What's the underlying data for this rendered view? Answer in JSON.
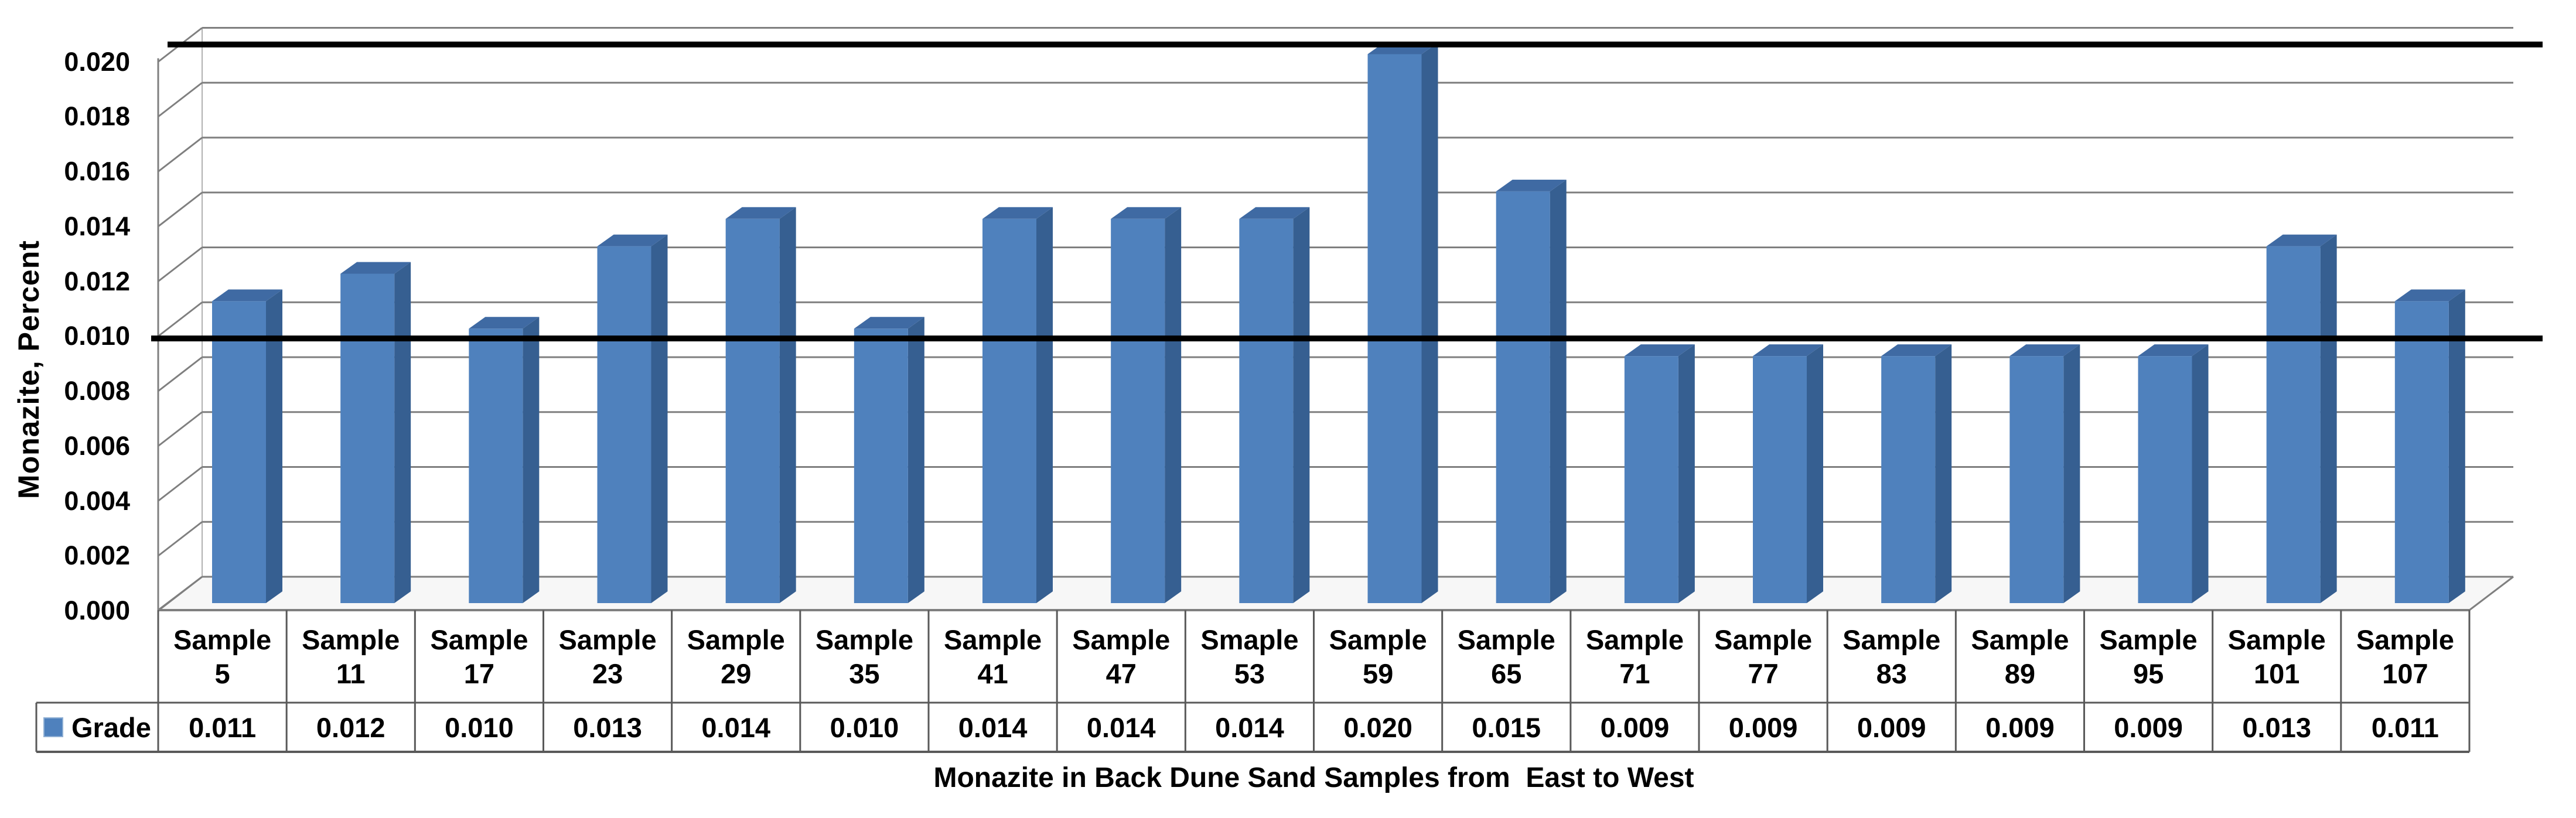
{
  "chart_data": {
    "type": "bar",
    "subtype": "3d-column",
    "title": "",
    "xlabel": "Monazite in Back Dune Sand Samples from  East to West",
    "ylabel": "Monazite, Percent",
    "categories": [
      "Sample 5",
      "Sample 11",
      "Sample 17",
      "Sample 23",
      "Sample 29",
      "Sample 35",
      "Sample 41",
      "Sample 47",
      "Smaple 53",
      "Sample 59",
      "Sample 65",
      "Sample 71",
      "Sample 77",
      "Sample 83",
      "Sample 89",
      "Sample 95",
      "Sample 101",
      "Sample 107"
    ],
    "series": [
      {
        "name": "Grade",
        "values": [
          0.011,
          0.012,
          0.01,
          0.013,
          0.014,
          0.01,
          0.014,
          0.014,
          0.014,
          0.02,
          0.015,
          0.009,
          0.009,
          0.009,
          0.009,
          0.009,
          0.013,
          0.011
        ]
      }
    ],
    "ylim": [
      0,
      0.02
    ],
    "y_tick_step": 0.002,
    "y_ticks": [
      "0.000",
      "0.002",
      "0.004",
      "0.006",
      "0.008",
      "0.010",
      "0.012",
      "0.014",
      "0.016",
      "0.018",
      "0.020"
    ],
    "grid": true,
    "legend_position": "data-table-left",
    "data_table_shown": true,
    "reference_lines": [
      {
        "value": 0.01,
        "color": "#000000"
      },
      {
        "value": 0.02,
        "color": "#000000"
      }
    ]
  },
  "colors": {
    "background": "#ffffff",
    "bar_front": "#4f81bd",
    "bar_side": "#365f91",
    "bar_top": "#3f6aa3",
    "gridline": "#7f7f7f",
    "wall_edge": "#b0b0b0",
    "axis_line": "#7f7f7f",
    "table_border": "#595959",
    "floor_fill": "#f7f7f7",
    "reference_line": "#000000",
    "text": "#000000",
    "legend_swatch_border": "#8fafd4"
  }
}
